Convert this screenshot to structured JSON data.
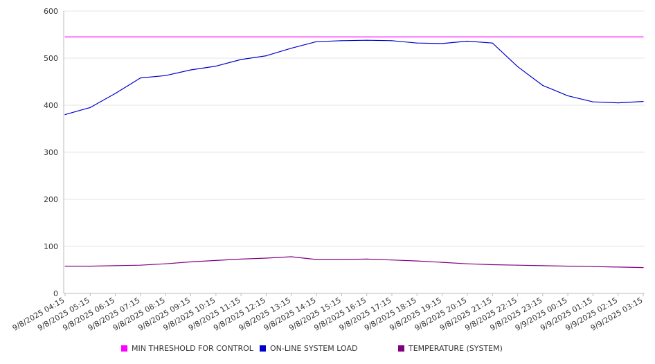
{
  "chart_data": {
    "type": "line",
    "title": "",
    "xlabel": "",
    "ylabel": "",
    "ylim": [
      0,
      600
    ],
    "y_ticks": [
      0,
      100,
      200,
      300,
      400,
      500,
      600
    ],
    "grid": true,
    "legend_position": "bottom",
    "categories": [
      "9/8/2025 04:15",
      "9/8/2025 05:15",
      "9/8/2025 06:15",
      "9/8/2025 07:15",
      "9/8/2025 08:15",
      "9/8/2025 09:15",
      "9/8/2025 10:15",
      "9/8/2025 11:15",
      "9/8/2025 12:15",
      "9/8/2025 13:15",
      "9/8/2025 14:15",
      "9/8/2025 15:15",
      "9/8/2025 16:15",
      "9/8/2025 17:15",
      "9/8/2025 18:15",
      "9/8/2025 19:15",
      "9/8/2025 20:15",
      "9/8/2025 21:15",
      "9/8/2025 22:15",
      "9/8/2025 23:15",
      "9/9/2025 00:15",
      "9/9/2025 01:15",
      "9/9/2025 02:15",
      "9/9/2025 03:15"
    ],
    "series": [
      {
        "name": "MIN THRESHOLD FOR CONTROL",
        "color": "#ff00ff",
        "values": [
          545,
          545,
          545,
          545,
          545,
          545,
          545,
          545,
          545,
          545,
          545,
          545,
          545,
          545,
          545,
          545,
          545,
          545,
          545,
          545,
          545,
          545,
          545,
          545
        ]
      },
      {
        "name": "ON-LINE SYSTEM LOAD",
        "color": "#0000cc",
        "values": [
          380,
          395,
          425,
          458,
          463,
          475,
          483,
          497,
          505,
          521,
          535,
          537,
          538,
          537,
          532,
          531,
          536,
          532,
          482,
          442,
          420,
          407,
          405,
          408
        ]
      },
      {
        "name": "TEMPERATURE (SYSTEM)",
        "color": "#800080",
        "values": [
          58,
          58,
          59,
          60,
          63,
          67,
          70,
          73,
          75,
          78,
          72,
          72,
          73,
          71,
          69,
          66,
          63,
          61,
          60,
          59,
          58,
          57,
          56,
          55
        ]
      }
    ]
  }
}
